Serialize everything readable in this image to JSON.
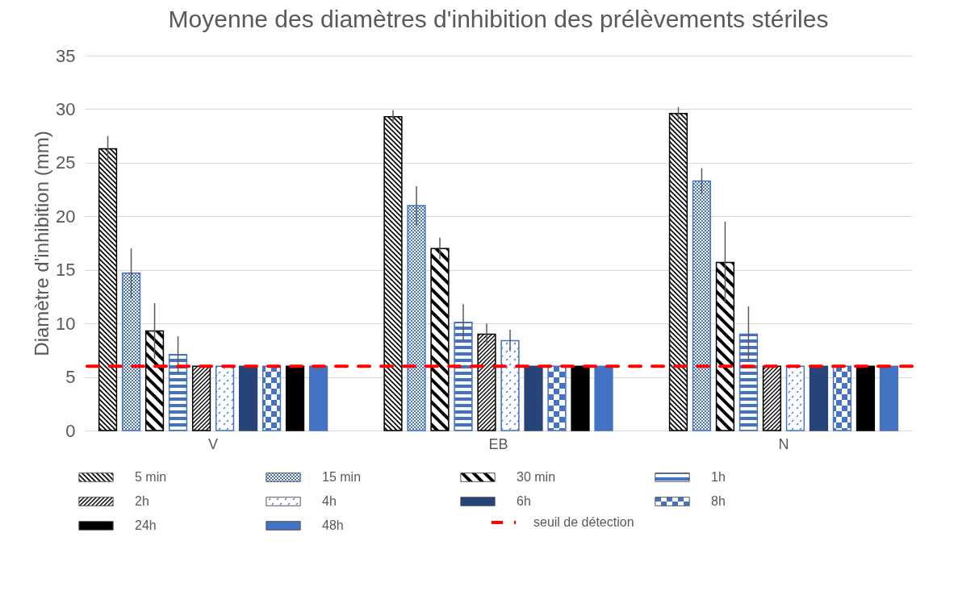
{
  "chart_data": {
    "type": "bar",
    "title": "Moyenne des diamètres d'inhibition des prélèvements stériles",
    "ylabel": "Diamètre d'inhibition (mm)",
    "categories": [
      "V",
      "EB",
      "N"
    ],
    "series": [
      {
        "name": "5 min",
        "color": "#000000",
        "values": [
          26.3,
          29.3,
          29.6
        ],
        "errors": [
          1.2,
          0.6,
          0.6
        ]
      },
      {
        "name": "15 min",
        "color": "#4472c4",
        "values": [
          14.7,
          21.0,
          23.3
        ],
        "errors": [
          2.3,
          1.8,
          1.2
        ]
      },
      {
        "name": "30 min",
        "color": "#000000",
        "values": [
          9.3,
          17.0,
          15.7
        ],
        "errors": [
          2.6,
          1.0,
          3.8
        ]
      },
      {
        "name": "1h",
        "color": "#4472c4",
        "values": [
          7.1,
          10.1,
          9.0
        ],
        "errors": [
          1.7,
          1.7,
          2.6
        ]
      },
      {
        "name": "2h",
        "color": "#000000",
        "values": [
          6,
          9.0,
          6
        ],
        "errors": [
          null,
          1.0,
          null
        ]
      },
      {
        "name": "4h",
        "color": "#4472c4",
        "values": [
          6,
          8.4,
          6
        ],
        "errors": [
          null,
          1.0,
          null
        ]
      },
      {
        "name": "6h",
        "color": "#264478",
        "values": [
          6,
          6,
          6
        ]
      },
      {
        "name": "8h",
        "color": "#4472c4",
        "values": [
          6,
          6,
          6
        ]
      },
      {
        "name": "24h",
        "color": "#000000",
        "values": [
          6,
          6,
          6
        ]
      },
      {
        "name": "48h",
        "color": "#4472c4",
        "values": [
          6,
          6,
          6
        ]
      }
    ],
    "ylim": [
      0,
      35
    ],
    "yticks": [
      0,
      5,
      10,
      15,
      20,
      25,
      30,
      35
    ],
    "grid": "y",
    "legend": "bottom",
    "ref_lines": [
      {
        "axis": "y",
        "value": 6,
        "label": "seuil de détection",
        "color": "#ff0000",
        "line_style": "dashed"
      }
    ]
  }
}
